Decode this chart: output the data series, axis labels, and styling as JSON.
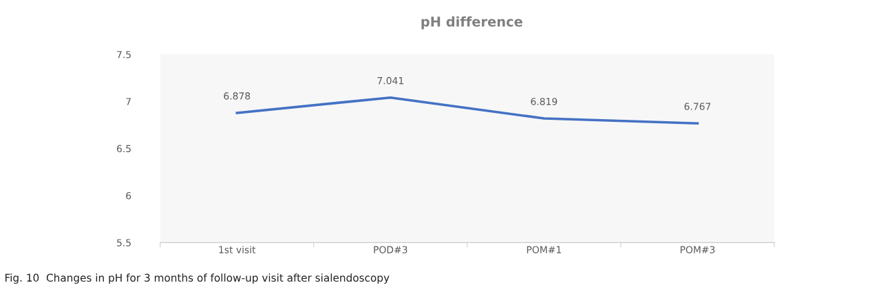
{
  "chart_data": {
    "type": "line",
    "title": "pH difference",
    "categories": [
      "1st visit",
      "POD#3",
      "POM#1",
      "POM#3"
    ],
    "series": [
      {
        "color": "#4472c4",
        "values": [
          6.878,
          7.041,
          6.819,
          6.767
        ]
      }
    ],
    "ylim": [
      5.5,
      7.5
    ],
    "yticks": [
      "5.5",
      "6",
      "6.5",
      "7",
      "7.5"
    ],
    "data_labels": true,
    "grid": false,
    "legend": false,
    "marker": "none",
    "line_style": "solid",
    "annotations": [
      "Fig. 10  Changes in pH for 3 months of follow-up visit after sialendoscopy"
    ]
  }
}
